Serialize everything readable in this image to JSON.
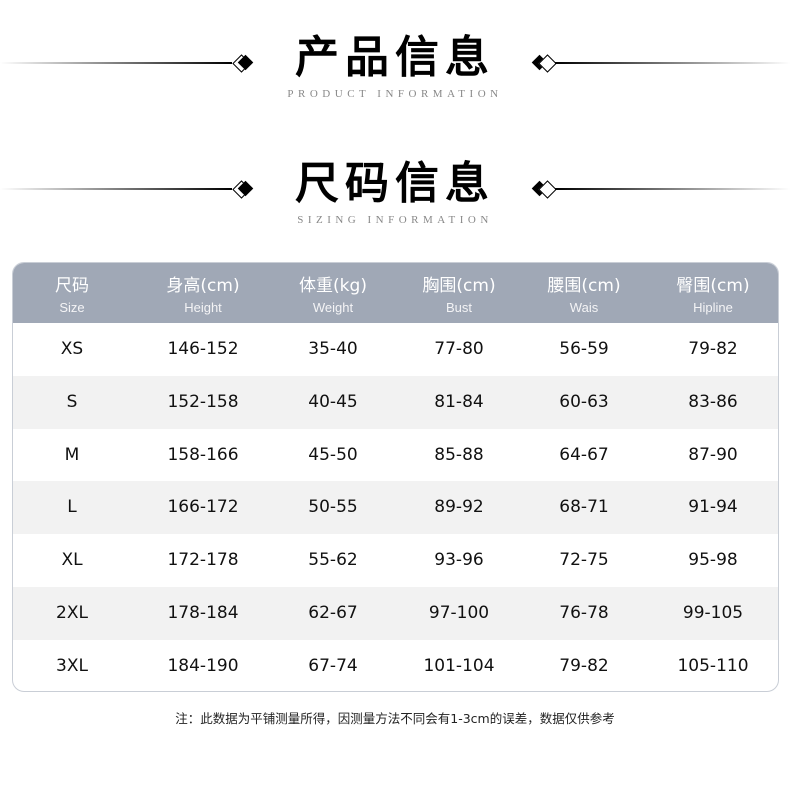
{
  "product_header": {
    "title": "产品信息",
    "subtitle": "PRODUCT INFORMATION"
  },
  "sizing_header": {
    "title": "尺码信息",
    "subtitle": "SIZING INFORMATION"
  },
  "table": {
    "header_color": "#a0a8b6",
    "columns": [
      {
        "cn": "尺码",
        "en": "Size"
      },
      {
        "cn": "身高(cm)",
        "en": "Height"
      },
      {
        "cn": "体重(kg)",
        "en": "Weight"
      },
      {
        "cn": "胸围(cm)",
        "en": "Bust"
      },
      {
        "cn": "腰围(cm)",
        "en": "Wais"
      },
      {
        "cn": "臀围(cm)",
        "en": "Hipline"
      }
    ],
    "rows": [
      [
        "XS",
        "146-152",
        "35-40",
        "77-80",
        "56-59",
        "79-82"
      ],
      [
        "S",
        "152-158",
        "40-45",
        "81-84",
        "60-63",
        "83-86"
      ],
      [
        "M",
        "158-166",
        "45-50",
        "85-88",
        "64-67",
        "87-90"
      ],
      [
        "L",
        "166-172",
        "50-55",
        "89-92",
        "68-71",
        "91-94"
      ],
      [
        "XL",
        "172-178",
        "55-62",
        "93-96",
        "72-75",
        "95-98"
      ],
      [
        "2XL",
        "178-184",
        "62-67",
        "97-100",
        "76-78",
        "99-105"
      ],
      [
        "3XL",
        "184-190",
        "67-74",
        "101-104",
        "79-82",
        "105-110"
      ]
    ]
  },
  "note": "注：此数据为平铺测量所得，因测量方法不同会有1-3cm的误差，数据仅供参考"
}
